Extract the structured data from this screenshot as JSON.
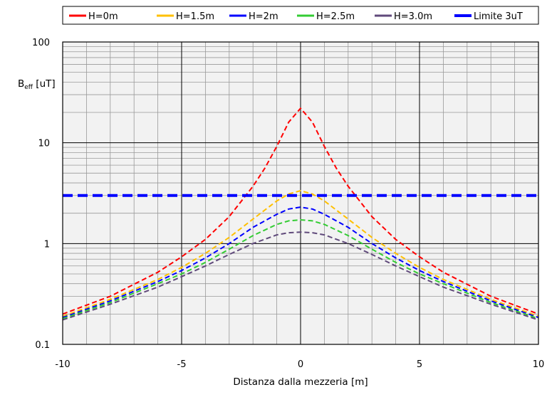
{
  "chart_data": {
    "type": "line",
    "title": "",
    "xlabel": "Distanza dalla mezzeria [m]",
    "ylabel_main": "B",
    "ylabel_sub": "eff",
    "ylabel_unit": " [uT]",
    "xlim": [
      -10,
      10
    ],
    "ylim": [
      0.1,
      100
    ],
    "yscale": "log",
    "grid": true,
    "legend_position": "top",
    "x_ticks": [
      -10,
      -5,
      0,
      5,
      10
    ],
    "x_tick_labels": [
      "-10",
      "-5",
      "0",
      "5",
      "10"
    ],
    "y_ticks": [
      0.1,
      1,
      10,
      100
    ],
    "y_tick_labels": [
      "0.1",
      "1",
      "10",
      "100"
    ],
    "series": [
      {
        "name": "H=0m",
        "color": "#ff0000",
        "style": "dashed",
        "x": [
          -10,
          -8,
          -6,
          -5,
          -4,
          -3,
          -2,
          -1.5,
          -1,
          -0.5,
          0,
          0.5,
          1,
          1.5,
          2,
          3,
          4,
          5,
          6,
          8,
          10
        ],
        "y": [
          0.2,
          0.3,
          0.52,
          0.74,
          1.1,
          1.85,
          3.7,
          5.6,
          9.2,
          16,
          22,
          16,
          9.2,
          5.6,
          3.7,
          1.85,
          1.1,
          0.74,
          0.52,
          0.3,
          0.2
        ]
      },
      {
        "name": "H=1.5m",
        "color": "#ffc000",
        "style": "dashed",
        "x": [
          -10,
          -8,
          -6,
          -5,
          -4,
          -3,
          -2,
          -1,
          -0.5,
          0,
          0.5,
          1,
          2,
          3,
          4,
          5,
          6,
          8,
          10
        ],
        "y": [
          0.19,
          0.28,
          0.44,
          0.58,
          0.8,
          1.15,
          1.75,
          2.65,
          3.1,
          3.35,
          3.1,
          2.65,
          1.75,
          1.15,
          0.8,
          0.58,
          0.44,
          0.28,
          0.19
        ]
      },
      {
        "name": "H=2m",
        "color": "#0000ff",
        "style": "dashed",
        "x": [
          -10,
          -8,
          -6,
          -5,
          -4,
          -3,
          -2,
          -1,
          -0.5,
          0,
          0.5,
          1,
          2,
          3,
          4,
          5,
          6,
          8,
          10
        ],
        "y": [
          0.185,
          0.27,
          0.42,
          0.54,
          0.72,
          1.0,
          1.45,
          1.95,
          2.2,
          2.3,
          2.2,
          1.95,
          1.45,
          1.0,
          0.72,
          0.54,
          0.42,
          0.27,
          0.185
        ]
      },
      {
        "name": "H=2.5m",
        "color": "#33cc33",
        "style": "dashed",
        "x": [
          -10,
          -8,
          -6,
          -5,
          -4,
          -3,
          -2,
          -1,
          -0.5,
          0,
          0.5,
          1,
          2,
          3,
          4,
          5,
          6,
          8,
          10
        ],
        "y": [
          0.18,
          0.26,
          0.4,
          0.5,
          0.65,
          0.88,
          1.2,
          1.55,
          1.68,
          1.72,
          1.68,
          1.55,
          1.2,
          0.88,
          0.65,
          0.5,
          0.4,
          0.26,
          0.18
        ]
      },
      {
        "name": "H=3.0m",
        "color": "#604a7b",
        "style": "dashed",
        "x": [
          -10,
          -8,
          -6,
          -5,
          -4,
          -3,
          -2,
          -1,
          -0.5,
          0,
          0.5,
          1,
          2,
          3,
          4,
          5,
          6,
          8,
          10
        ],
        "y": [
          0.175,
          0.25,
          0.37,
          0.47,
          0.6,
          0.78,
          1.0,
          1.22,
          1.28,
          1.3,
          1.28,
          1.22,
          1.0,
          0.78,
          0.6,
          0.47,
          0.37,
          0.25,
          0.175
        ]
      },
      {
        "name": "Limite 3uT",
        "color": "#0000ff",
        "style": "thick-dashed",
        "x": [
          -10,
          10
        ],
        "y": [
          3,
          3
        ]
      }
    ]
  }
}
